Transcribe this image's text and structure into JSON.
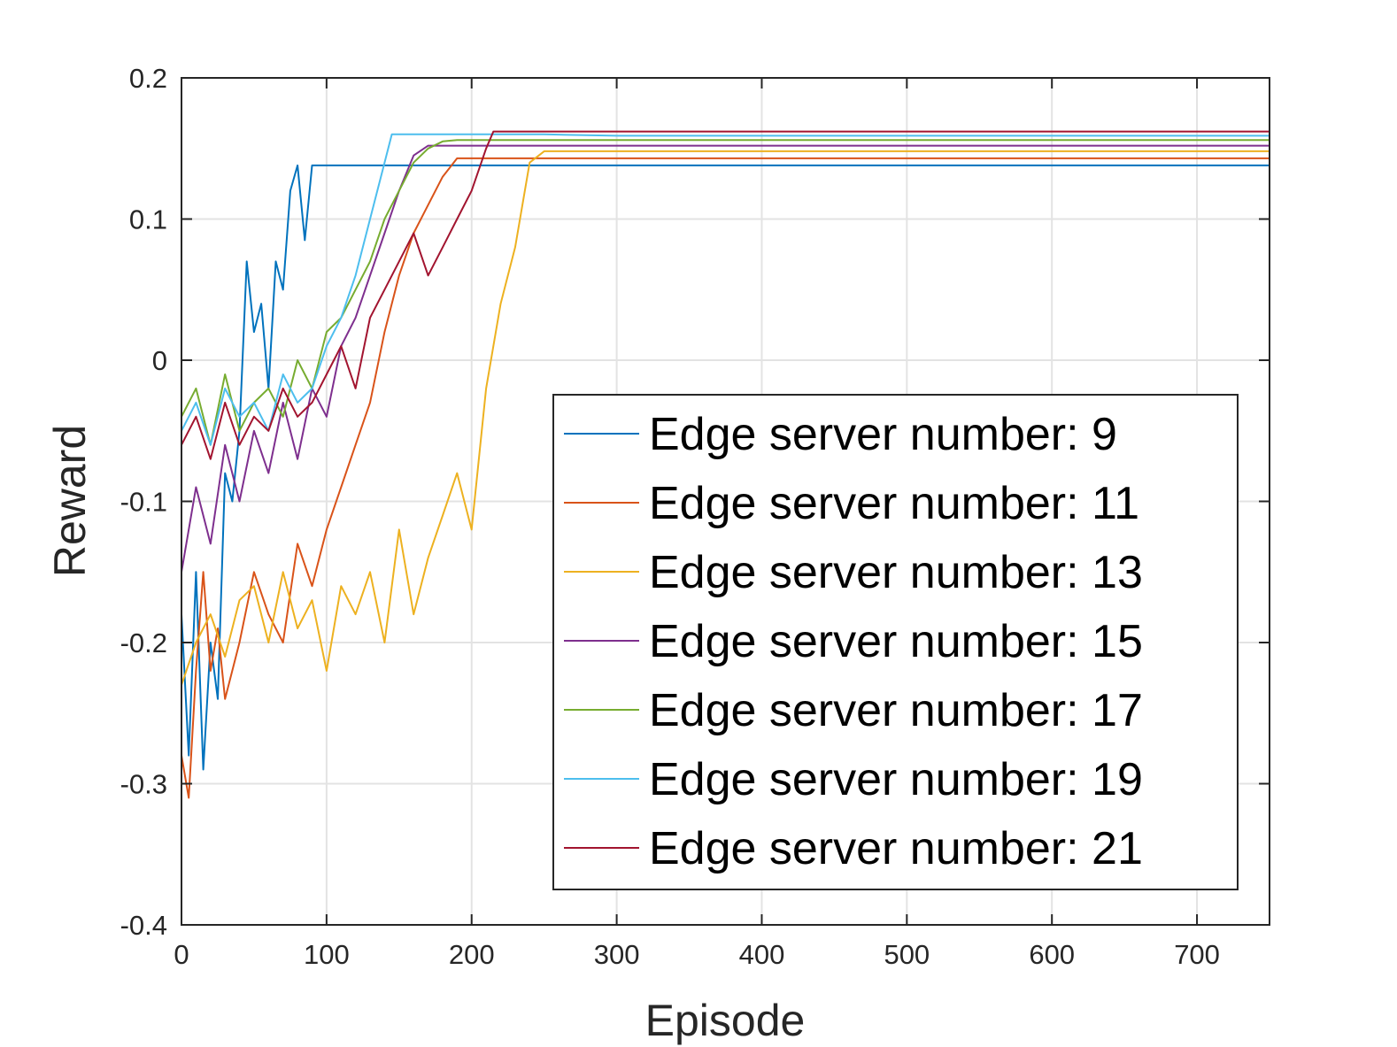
{
  "chart_data": {
    "type": "line",
    "title": "",
    "xlabel": "Episode",
    "ylabel": "Reward",
    "xlim": [
      0,
      750
    ],
    "ylim": [
      -0.4,
      0.2
    ],
    "xticks": [
      0,
      100,
      200,
      300,
      400,
      500,
      600,
      700
    ],
    "yticks": [
      -0.4,
      -0.3,
      -0.2,
      -0.1,
      0,
      0.1,
      0.2
    ],
    "grid": true,
    "legend_position": "lower-right",
    "series": [
      {
        "name": "Edge server number: 9",
        "color": "#0072bd",
        "x": [
          0,
          5,
          10,
          15,
          20,
          25,
          30,
          35,
          40,
          45,
          50,
          55,
          60,
          65,
          70,
          75,
          80,
          85,
          90,
          95,
          100,
          200,
          300,
          400,
          500,
          600,
          700,
          750
        ],
        "y": [
          -0.18,
          -0.28,
          -0.15,
          -0.29,
          -0.2,
          -0.24,
          -0.08,
          -0.1,
          -0.05,
          0.07,
          0.02,
          0.04,
          -0.02,
          0.07,
          0.05,
          0.12,
          0.138,
          0.085,
          0.138,
          0.138,
          0.138,
          0.138,
          0.138,
          0.138,
          0.138,
          0.138,
          0.138,
          0.138
        ]
      },
      {
        "name": "Edge server number: 11",
        "color": "#d95319",
        "x": [
          0,
          5,
          10,
          15,
          20,
          25,
          30,
          40,
          50,
          60,
          70,
          80,
          90,
          100,
          110,
          120,
          130,
          140,
          150,
          160,
          170,
          180,
          190,
          200,
          210,
          215,
          300,
          400,
          500,
          600,
          700,
          750
        ],
        "y": [
          -0.28,
          -0.31,
          -0.22,
          -0.15,
          -0.22,
          -0.19,
          -0.24,
          -0.2,
          -0.15,
          -0.18,
          -0.2,
          -0.13,
          -0.16,
          -0.12,
          -0.09,
          -0.06,
          -0.03,
          0.02,
          0.06,
          0.09,
          0.11,
          0.13,
          0.143,
          0.143,
          0.143,
          0.143,
          0.143,
          0.143,
          0.143,
          0.143,
          0.143,
          0.143
        ]
      },
      {
        "name": "Edge server number: 13",
        "color": "#edb120",
        "x": [
          0,
          10,
          20,
          30,
          40,
          50,
          60,
          70,
          80,
          90,
          100,
          110,
          120,
          130,
          140,
          150,
          160,
          170,
          180,
          190,
          200,
          210,
          220,
          230,
          240,
          250,
          260,
          300,
          400,
          500,
          600,
          700,
          750
        ],
        "y": [
          -0.23,
          -0.2,
          -0.18,
          -0.21,
          -0.17,
          -0.16,
          -0.2,
          -0.15,
          -0.19,
          -0.17,
          -0.22,
          -0.16,
          -0.18,
          -0.15,
          -0.2,
          -0.12,
          -0.18,
          -0.14,
          -0.11,
          -0.08,
          -0.12,
          -0.02,
          0.04,
          0.08,
          0.14,
          0.148,
          0.148,
          0.148,
          0.148,
          0.148,
          0.148,
          0.148,
          0.148
        ]
      },
      {
        "name": "Edge server number: 15",
        "color": "#7e2f8e",
        "x": [
          0,
          10,
          20,
          30,
          40,
          50,
          60,
          70,
          80,
          90,
          100,
          110,
          120,
          130,
          140,
          150,
          160,
          170,
          180,
          300,
          400,
          500,
          600,
          700,
          750
        ],
        "y": [
          -0.15,
          -0.09,
          -0.13,
          -0.06,
          -0.1,
          -0.05,
          -0.08,
          -0.03,
          -0.07,
          -0.02,
          -0.04,
          0.01,
          0.03,
          0.06,
          0.09,
          0.12,
          0.145,
          0.152,
          0.152,
          0.152,
          0.152,
          0.152,
          0.152,
          0.152,
          0.152
        ]
      },
      {
        "name": "Edge server number: 17",
        "color": "#77ac30",
        "x": [
          0,
          10,
          20,
          30,
          40,
          50,
          60,
          70,
          80,
          90,
          100,
          110,
          120,
          130,
          140,
          150,
          160,
          170,
          180,
          190,
          300,
          400,
          500,
          600,
          700,
          750
        ],
        "y": [
          -0.04,
          -0.02,
          -0.06,
          -0.01,
          -0.05,
          -0.03,
          -0.02,
          -0.04,
          0.0,
          -0.02,
          0.02,
          0.03,
          0.05,
          0.07,
          0.1,
          0.12,
          0.14,
          0.15,
          0.155,
          0.156,
          0.156,
          0.156,
          0.156,
          0.156,
          0.156,
          0.156
        ]
      },
      {
        "name": "Edge server number: 19",
        "color": "#4dbeee",
        "x": [
          0,
          10,
          20,
          30,
          40,
          50,
          60,
          70,
          80,
          90,
          100,
          110,
          120,
          130,
          140,
          145,
          150,
          200,
          250,
          300,
          400,
          500,
          600,
          700,
          750
        ],
        "y": [
          -0.05,
          -0.03,
          -0.06,
          -0.02,
          -0.04,
          -0.03,
          -0.05,
          -0.01,
          -0.03,
          -0.02,
          0.01,
          0.03,
          0.06,
          0.1,
          0.14,
          0.16,
          0.16,
          0.16,
          0.16,
          0.159,
          0.159,
          0.159,
          0.159,
          0.159,
          0.159
        ]
      },
      {
        "name": "Edge server number: 21",
        "color": "#a2142f",
        "x": [
          0,
          10,
          20,
          30,
          40,
          50,
          60,
          70,
          80,
          90,
          100,
          110,
          120,
          130,
          140,
          150,
          160,
          170,
          180,
          190,
          200,
          210,
          215,
          300,
          400,
          500,
          600,
          700,
          750
        ],
        "y": [
          -0.06,
          -0.04,
          -0.07,
          -0.03,
          -0.06,
          -0.04,
          -0.05,
          -0.02,
          -0.04,
          -0.03,
          -0.01,
          0.01,
          -0.02,
          0.03,
          0.05,
          0.07,
          0.09,
          0.06,
          0.08,
          0.1,
          0.12,
          0.15,
          0.162,
          0.162,
          0.162,
          0.162,
          0.162,
          0.162,
          0.162
        ]
      }
    ]
  }
}
